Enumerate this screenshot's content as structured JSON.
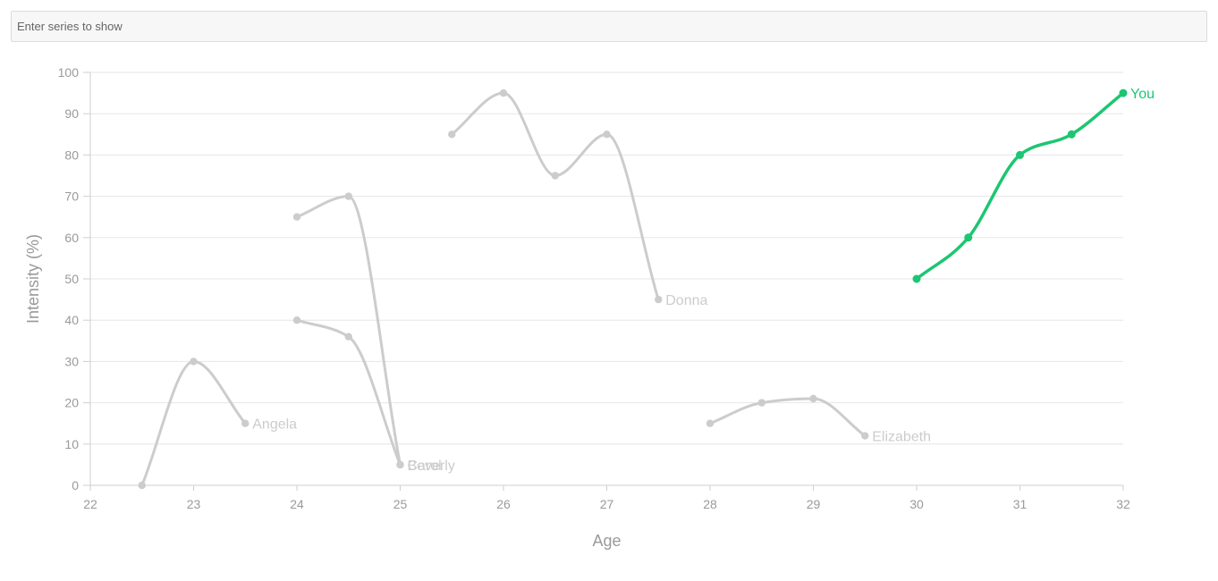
{
  "filter": {
    "placeholder": "Enter series to show"
  },
  "chart_data": {
    "type": "line",
    "title": "",
    "xlabel": "Age",
    "ylabel": "Intensity (%)",
    "xlim": [
      22,
      32
    ],
    "ylim": [
      0,
      100
    ],
    "xticks": [
      22,
      23,
      24,
      25,
      26,
      27,
      28,
      29,
      30,
      31,
      32
    ],
    "yticks": [
      0,
      10,
      20,
      30,
      40,
      50,
      60,
      70,
      80,
      90,
      100
    ],
    "grid": true,
    "colors": {
      "muted": "#cccccc",
      "highlight": "#1dc672",
      "label_muted": "#cccccc"
    },
    "series": [
      {
        "name": "Angela",
        "highlight": false,
        "x": [
          22.5,
          23,
          23.5
        ],
        "y": [
          0,
          30,
          15
        ]
      },
      {
        "name": "Beverly",
        "highlight": false,
        "x": [
          24,
          24.5,
          25
        ],
        "y": [
          65,
          70,
          5
        ]
      },
      {
        "name": "Carol",
        "highlight": false,
        "x": [
          24,
          24.5,
          25
        ],
        "y": [
          40,
          36,
          5
        ]
      },
      {
        "name": "Donna",
        "highlight": false,
        "x": [
          25.5,
          26,
          26.5,
          27,
          27.5
        ],
        "y": [
          85,
          95,
          75,
          85,
          45
        ]
      },
      {
        "name": "Elizabeth",
        "highlight": false,
        "x": [
          28,
          28.5,
          29,
          29.5
        ],
        "y": [
          15,
          20,
          21,
          12
        ]
      },
      {
        "name": "You",
        "highlight": true,
        "x": [
          30,
          30.5,
          31,
          31.5,
          32
        ],
        "y": [
          50,
          60,
          80,
          85,
          95
        ]
      }
    ]
  }
}
